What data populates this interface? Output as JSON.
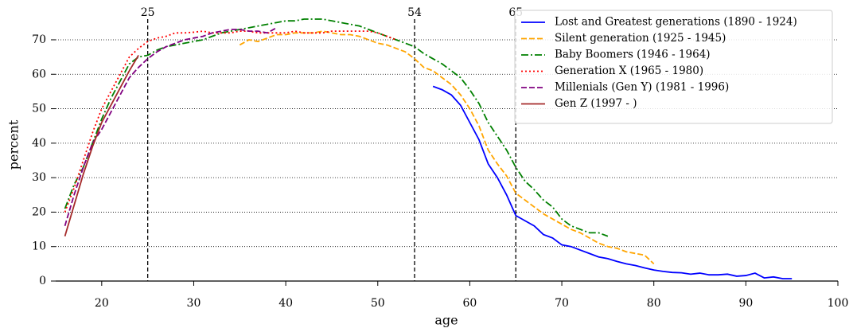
{
  "chart_data": {
    "type": "line",
    "xlabel": "age",
    "ylabel": "percent",
    "xlim": [
      15,
      100
    ],
    "ylim": [
      0,
      76
    ],
    "xticks": [
      20,
      30,
      40,
      50,
      60,
      70,
      80,
      90,
      100
    ],
    "yticks": [
      0,
      10,
      20,
      30,
      40,
      50,
      60,
      70
    ],
    "grid": "y",
    "legend": "upper right",
    "vlines": [
      25,
      54,
      65
    ],
    "series": [
      {
        "name": "Lost and Greatest generations (1890 - 1924)",
        "color": "#0000ff",
        "linestyle": "solid",
        "x": [
          56,
          57,
          58,
          59,
          60,
          61,
          62,
          63,
          64,
          65,
          66,
          67,
          68,
          69,
          70,
          71,
          72,
          73,
          74,
          75,
          76,
          77,
          78,
          79,
          80,
          81,
          82,
          83,
          84,
          85,
          86,
          87,
          88,
          89,
          90,
          91,
          92,
          93,
          94,
          95
        ],
        "values": [
          56.5,
          55.5,
          54,
          51,
          46,
          41,
          34,
          30,
          25,
          19,
          17.5,
          16,
          13.5,
          12.5,
          10.5,
          10,
          9,
          8,
          7,
          6.5,
          5.7,
          5,
          4.5,
          3.8,
          3.2,
          2.8,
          2.5,
          2.4,
          2,
          2.3,
          1.8,
          1.8,
          2,
          1.4,
          1.6,
          2.3,
          0.9,
          1.2,
          0.7,
          0.7
        ]
      },
      {
        "name": "Silent generation (1925 - 1945)",
        "color": "#ffa500",
        "linestyle": "dashed",
        "x": [
          35,
          36,
          37,
          38,
          39,
          40,
          41,
          42,
          43,
          44,
          45,
          46,
          47,
          48,
          49,
          50,
          51,
          52,
          53,
          54,
          55,
          56,
          57,
          58,
          59,
          60,
          61,
          62,
          63,
          64,
          65,
          66,
          67,
          68,
          69,
          70,
          71,
          72,
          73,
          74,
          75,
          76,
          77,
          78,
          79,
          80
        ],
        "values": [
          68.5,
          70,
          69.5,
          70.5,
          71.5,
          71.5,
          72,
          72,
          72,
          72.5,
          72,
          71.5,
          71.5,
          71,
          70,
          69,
          68.5,
          67.5,
          66.5,
          64.5,
          62,
          61,
          59,
          57,
          54,
          50,
          45,
          38,
          34,
          30.5,
          25.5,
          23.5,
          21.5,
          19.5,
          18,
          16.5,
          15,
          14,
          12.5,
          11,
          10,
          9.5,
          8.5,
          8,
          7.5,
          5
        ]
      },
      {
        "name": "Baby Boomers (1946 - 1964)",
        "color": "#008000",
        "linestyle": "dashdot",
        "x": [
          16,
          17,
          18,
          19,
          20,
          21,
          22,
          23,
          24,
          25,
          26,
          27,
          28,
          29,
          30,
          31,
          32,
          33,
          34,
          35,
          36,
          37,
          38,
          39,
          40,
          41,
          42,
          43,
          44,
          45,
          46,
          47,
          48,
          49,
          50,
          51,
          52,
          53,
          54,
          55,
          56,
          57,
          58,
          59,
          60,
          61,
          62,
          63,
          64,
          65,
          66,
          67,
          68,
          69,
          70,
          71,
          72,
          73,
          74,
          75
        ],
        "values": [
          21,
          28,
          33,
          40,
          47,
          53,
          58,
          63,
          65,
          65.5,
          67,
          68,
          68.5,
          69,
          69.5,
          70,
          71,
          72,
          72.5,
          73,
          73.5,
          74,
          74.5,
          75,
          75.5,
          75.5,
          76,
          76,
          76,
          75.5,
          75,
          74.5,
          74,
          73,
          72,
          71,
          70,
          69,
          68,
          66,
          64.5,
          63,
          61,
          59,
          55.5,
          51.5,
          46,
          42,
          38,
          33,
          29,
          26.5,
          23.5,
          21.5,
          18,
          16,
          15,
          14,
          14,
          13
        ]
      },
      {
        "name": "Generation X (1965 - 1980)",
        "color": "#ff0000",
        "linestyle": "dotted",
        "x": [
          16,
          17,
          18,
          19,
          20,
          21,
          22,
          23,
          24,
          25,
          26,
          27,
          28,
          29,
          30,
          31,
          32,
          33,
          34,
          35,
          36,
          37,
          38,
          39,
          40,
          41,
          42,
          43,
          44,
          45,
          46,
          47,
          48,
          49,
          50,
          51,
          52
        ],
        "values": [
          20,
          27,
          35,
          43,
          50,
          55,
          60,
          65,
          67.5,
          69.5,
          70.5,
          71,
          72,
          72,
          72.2,
          72.5,
          72,
          72,
          72,
          72.5,
          72.5,
          72,
          72,
          72,
          72,
          72.5,
          72,
          72,
          72,
          72.5,
          72.5,
          72.5,
          72.5,
          72.5,
          72,
          71,
          70
        ]
      },
      {
        "name": "Millenials (Gen Y) (1981 - 1996)",
        "color": "#800080",
        "linestyle": "dashed",
        "x": [
          16,
          17,
          18,
          19,
          20,
          21,
          22,
          23,
          24,
          25,
          26,
          27,
          28,
          29,
          30,
          31,
          32,
          33,
          34,
          35,
          36,
          37,
          38,
          39
        ],
        "values": [
          16,
          25,
          33,
          40,
          44,
          49,
          54,
          59,
          62,
          64.5,
          66.5,
          68,
          69,
          70,
          70.5,
          71,
          72,
          72.5,
          73,
          73,
          72.5,
          72.5,
          72,
          73.5
        ]
      },
      {
        "name": "Gen Z (1997 - )",
        "color": "#a52a2a",
        "linestyle": "solid",
        "x": [
          16,
          17,
          18,
          19,
          20,
          21,
          22,
          23,
          24
        ],
        "values": [
          13,
          22,
          31,
          39,
          46,
          51,
          56,
          61,
          65.5
        ]
      }
    ]
  }
}
